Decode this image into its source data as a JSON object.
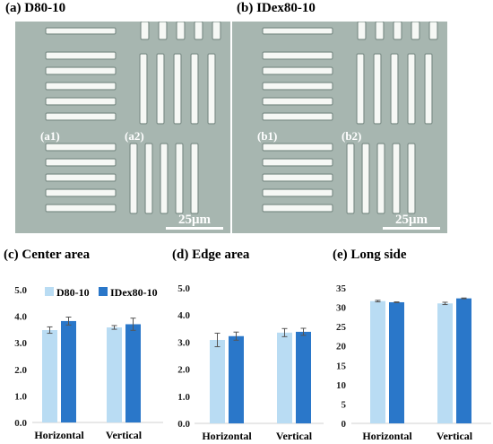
{
  "figure": {
    "panels": [
      {
        "title": "(a) D80-10",
        "labels": [
          "(a1)",
          "(a2)"
        ],
        "scale_bar": "25μm"
      },
      {
        "title": "(b) IDex80-10",
        "labels": [
          "(b1)",
          "(b2)"
        ],
        "scale_bar": "25μm"
      }
    ],
    "colors": {
      "series1": "#b9dcf3",
      "series2": "#2a77c9",
      "background_micro": "#a7b6b0"
    }
  },
  "chart_data": [
    {
      "type": "bar",
      "title": "(c) Center area",
      "categories": [
        "Horizontal",
        "Vertical"
      ],
      "series": [
        {
          "name": "D80-10",
          "values": [
            3.48,
            3.58
          ],
          "errors": [
            0.12,
            0.07
          ]
        },
        {
          "name": "IDex80-10",
          "values": [
            3.82,
            3.7
          ],
          "errors": [
            0.15,
            0.23
          ]
        }
      ],
      "ylim": [
        0,
        5
      ],
      "yticks": [
        "0.0",
        "1.0",
        "2.0",
        "3.0",
        "4.0",
        "5.0"
      ],
      "legend": "top-left"
    },
    {
      "type": "bar",
      "title": "(d) Edge area",
      "categories": [
        "Horizontal",
        "Vertical"
      ],
      "series": [
        {
          "name": "D80-10",
          "values": [
            3.08,
            3.35
          ],
          "errors": [
            0.25,
            0.15
          ]
        },
        {
          "name": "IDex80-10",
          "values": [
            3.22,
            3.38
          ],
          "errors": [
            0.15,
            0.13
          ]
        }
      ],
      "ylim": [
        0,
        5
      ],
      "yticks": [
        "0.0",
        "1.0",
        "2.0",
        "3.0",
        "4.0",
        "5.0"
      ]
    },
    {
      "type": "bar",
      "title": "(e) Long side",
      "categories": [
        "Horizontal",
        "Vertical"
      ],
      "series": [
        {
          "name": "D80-10",
          "values": [
            31.6,
            31.0
          ],
          "errors": [
            0.2,
            0.3
          ]
        },
        {
          "name": "IDex80-10",
          "values": [
            31.3,
            32.3
          ],
          "errors": [
            0.1,
            0.1
          ]
        }
      ],
      "ylim": [
        0,
        35
      ],
      "yticks": [
        "0",
        "5",
        "10",
        "15",
        "20",
        "25",
        "30",
        "35"
      ]
    }
  ]
}
